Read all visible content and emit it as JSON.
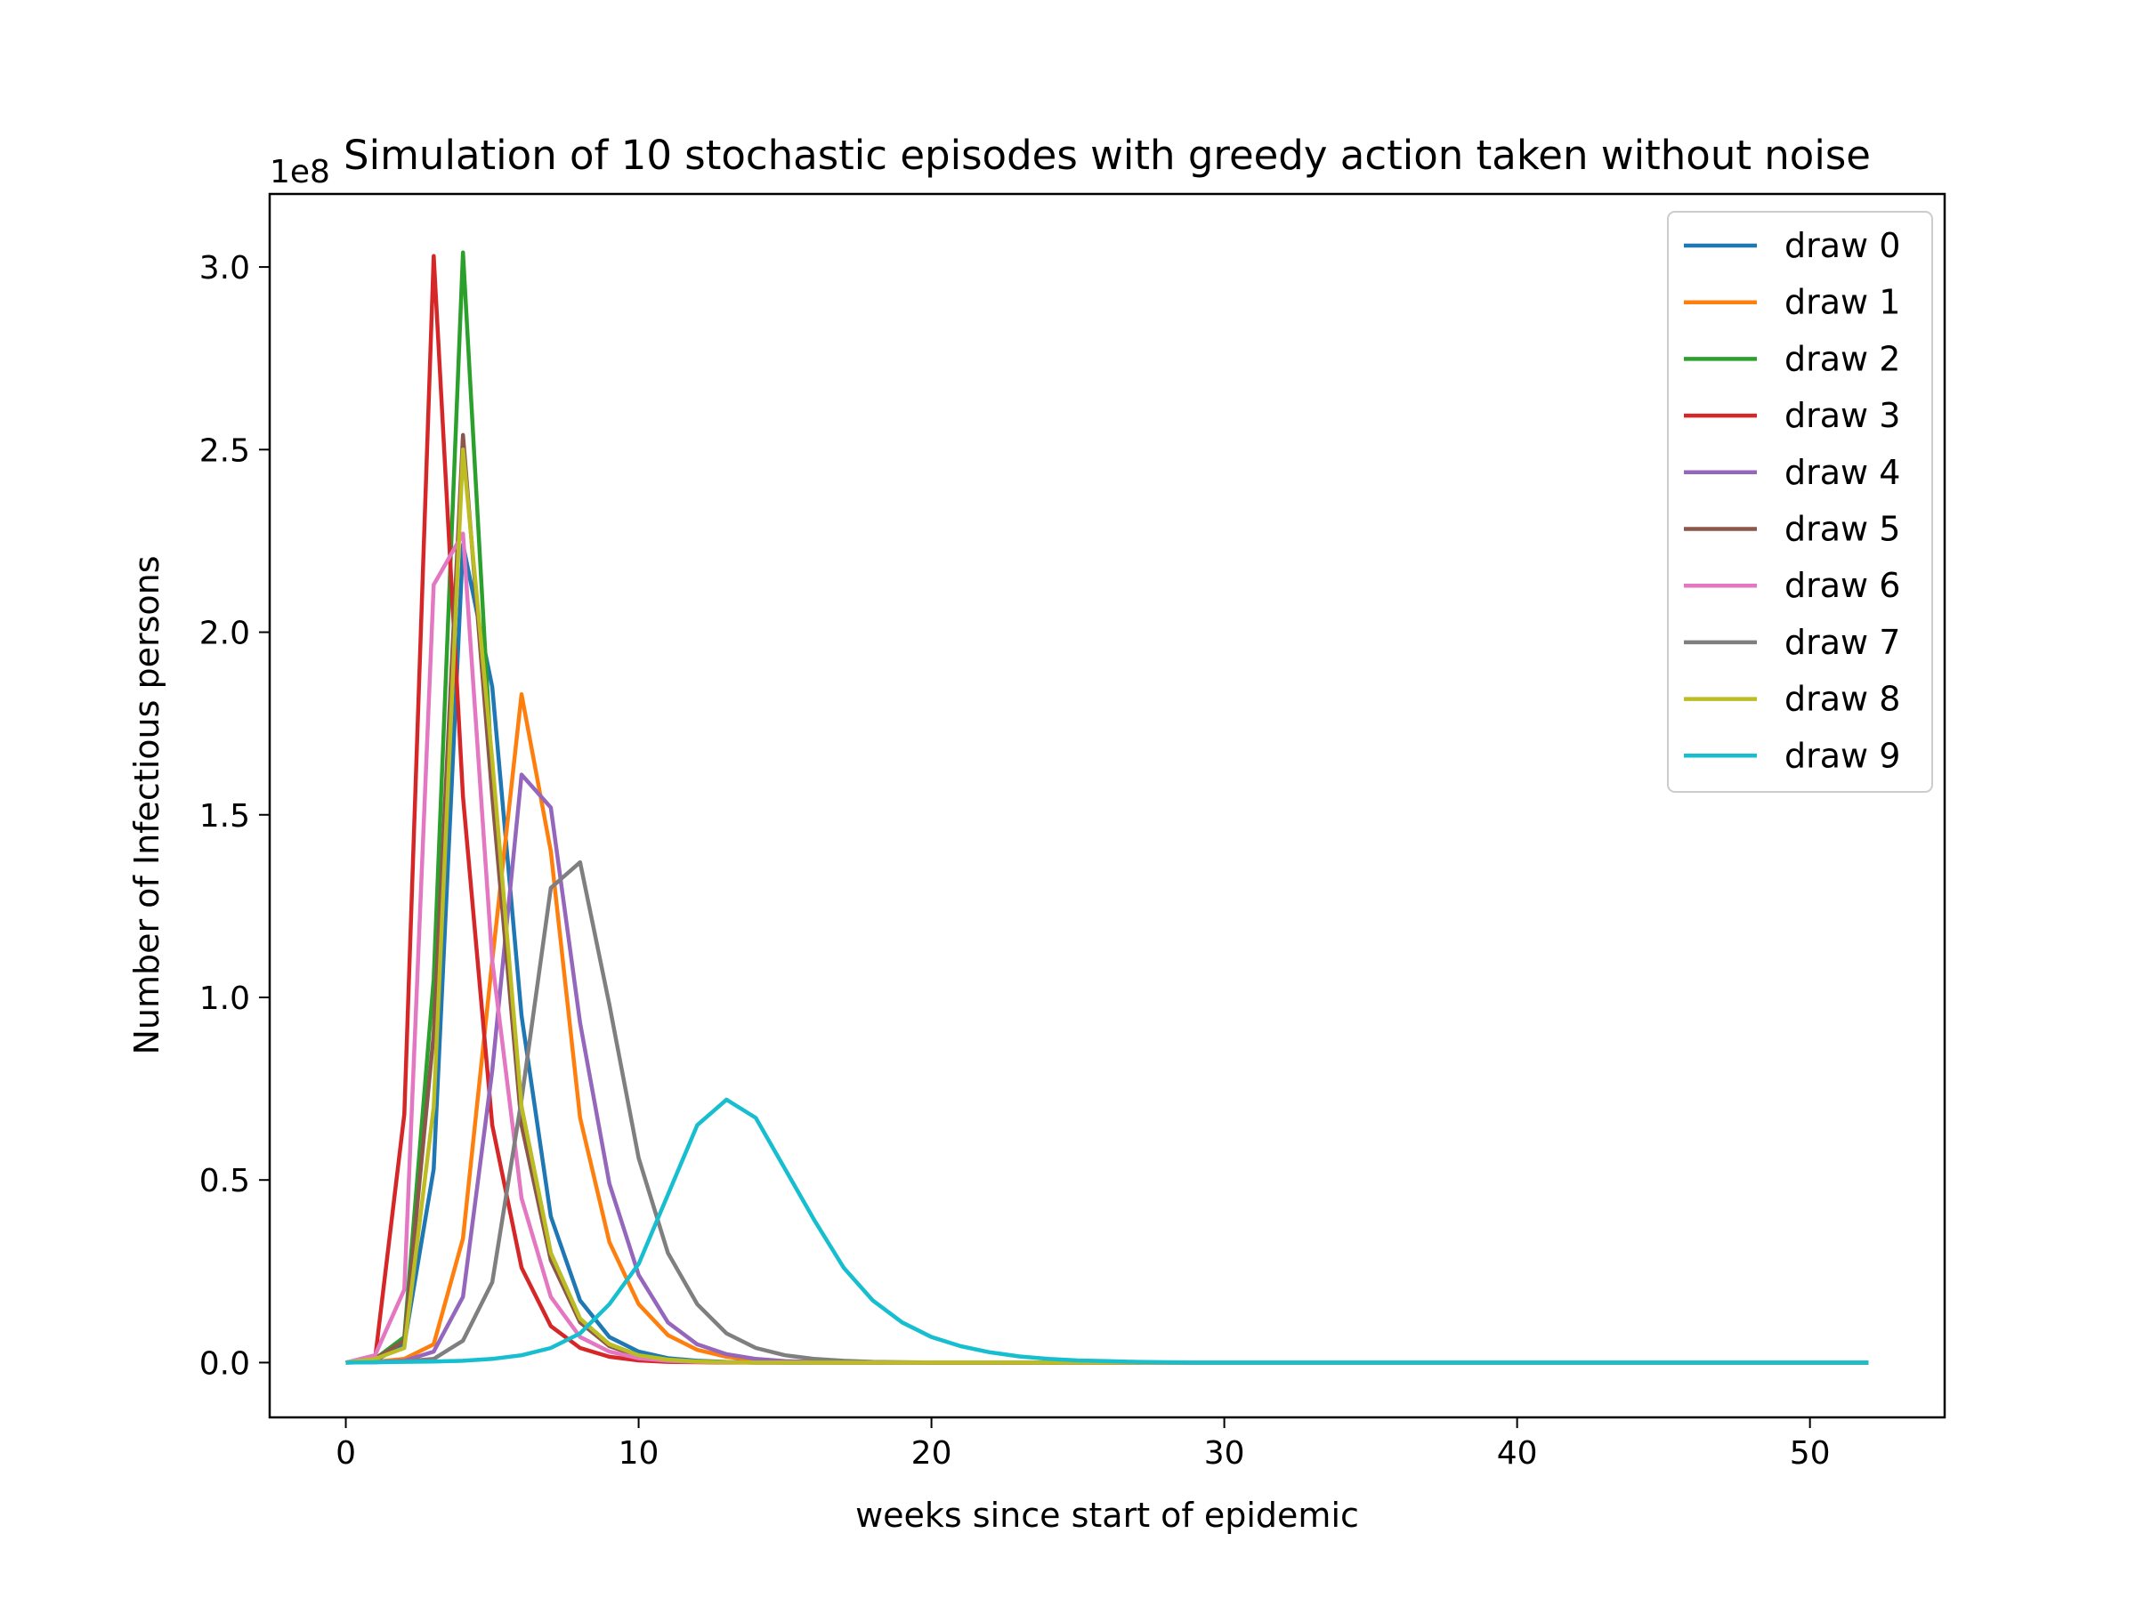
{
  "chart_data": {
    "type": "line",
    "title": "Simulation of 10 stochastic episodes with greedy action taken without noise",
    "xlabel": "weeks since start of epidemic",
    "ylabel": "Number of Infectious persons",
    "y_offset_label": "1e8",
    "xlim": [
      -2.6,
      54.6
    ],
    "ylim": [
      -0.15,
      3.2
    ],
    "y_scale_factor": 100000000,
    "xticks": [
      0,
      10,
      20,
      30,
      40,
      50
    ],
    "yticks": [
      0.0,
      0.5,
      1.0,
      1.5,
      2.0,
      2.5,
      3.0
    ],
    "xtick_labels": [
      "0",
      "10",
      "20",
      "30",
      "40",
      "50"
    ],
    "ytick_labels": [
      "0.0",
      "0.5",
      "1.0",
      "1.5",
      "2.0",
      "2.5",
      "3.0"
    ],
    "grid": false,
    "legend_position": "top-right",
    "x_range": [
      0,
      52
    ],
    "series": [
      {
        "name": "draw 0",
        "color": "#1f77b4",
        "values": [
          0,
          0.005,
          0.05,
          0.53,
          2.24,
          1.85,
          0.95,
          0.4,
          0.17,
          0.07,
          0.03,
          0.012,
          0.005,
          0.002,
          0.001,
          0
        ]
      },
      {
        "name": "draw 1",
        "color": "#ff7f0e",
        "values": [
          0,
          0.002,
          0.01,
          0.05,
          0.34,
          1.1,
          1.83,
          1.4,
          0.67,
          0.33,
          0.16,
          0.075,
          0.035,
          0.016,
          0.007,
          0.003,
          0.001,
          0
        ]
      },
      {
        "name": "draw 2",
        "color": "#2ca02c",
        "values": [
          0,
          0.01,
          0.07,
          1.05,
          3.04,
          1.6,
          0.7,
          0.3,
          0.12,
          0.05,
          0.02,
          0.008,
          0.003,
          0.001,
          0
        ]
      },
      {
        "name": "draw 3",
        "color": "#d62728",
        "values": [
          0,
          0.01,
          0.68,
          3.03,
          1.55,
          0.65,
          0.26,
          0.1,
          0.04,
          0.016,
          0.006,
          0.002,
          0.001,
          0
        ]
      },
      {
        "name": "draw 4",
        "color": "#9467bd",
        "values": [
          0,
          0.001,
          0.005,
          0.03,
          0.18,
          0.8,
          1.61,
          1.52,
          0.93,
          0.49,
          0.24,
          0.11,
          0.05,
          0.023,
          0.01,
          0.004,
          0.002,
          0.001,
          0
        ]
      },
      {
        "name": "draw 5",
        "color": "#8c564b",
        "values": [
          0,
          0.01,
          0.06,
          0.9,
          2.54,
          1.55,
          0.65,
          0.28,
          0.11,
          0.045,
          0.018,
          0.007,
          0.003,
          0.001,
          0
        ]
      },
      {
        "name": "draw 6",
        "color": "#e377c2",
        "values": [
          0,
          0.02,
          0.2,
          2.13,
          2.27,
          1.1,
          0.45,
          0.18,
          0.07,
          0.03,
          0.012,
          0.005,
          0.002,
          0.001,
          0
        ]
      },
      {
        "name": "draw 7",
        "color": "#7f7f7f",
        "values": [
          0,
          0.001,
          0.003,
          0.01,
          0.06,
          0.22,
          0.72,
          1.3,
          1.37,
          0.98,
          0.56,
          0.3,
          0.16,
          0.08,
          0.04,
          0.02,
          0.01,
          0.005,
          0.002,
          0.001,
          0
        ]
      },
      {
        "name": "draw 8",
        "color": "#bcbd22",
        "values": [
          0,
          0.01,
          0.04,
          0.7,
          2.5,
          1.65,
          0.7,
          0.3,
          0.12,
          0.05,
          0.02,
          0.008,
          0.003,
          0.001,
          0
        ]
      },
      {
        "name": "draw 9",
        "color": "#17becf",
        "values": [
          0,
          0.001,
          0.002,
          0.003,
          0.005,
          0.01,
          0.02,
          0.04,
          0.08,
          0.16,
          0.27,
          0.46,
          0.65,
          0.72,
          0.67,
          0.53,
          0.39,
          0.26,
          0.17,
          0.11,
          0.07,
          0.045,
          0.028,
          0.017,
          0.01,
          0.006,
          0.004,
          0.002,
          0.001,
          0
        ]
      }
    ]
  }
}
